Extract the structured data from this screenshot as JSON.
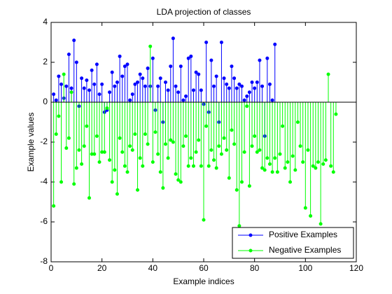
{
  "chart_data": {
    "type": "stem",
    "title": "LDA projection of classes",
    "xlabel": "Example indices",
    "ylabel": "Example values",
    "xlim": [
      0,
      120
    ],
    "xticks": [
      0,
      20,
      40,
      60,
      80,
      100,
      120
    ],
    "ylim": [
      -8,
      4
    ],
    "yticks": [
      -8,
      -6,
      -4,
      -2,
      0,
      2,
      4
    ],
    "grid": false,
    "legend": "lower right",
    "series": [
      {
        "name": "Positive Examples",
        "color": "#0000ff",
        "x": [
          1,
          2,
          3,
          4,
          5,
          6,
          7,
          8,
          9,
          10,
          11,
          12,
          13,
          14,
          15,
          16,
          17,
          18,
          19,
          20,
          21,
          22,
          23,
          24,
          25,
          26,
          27,
          28,
          29,
          30,
          31,
          32,
          33,
          34,
          35,
          36,
          37,
          38,
          39,
          40,
          41,
          42,
          43,
          44,
          45,
          46,
          47,
          48,
          49,
          50,
          51,
          52,
          53,
          54,
          55,
          56,
          57,
          58,
          59,
          60,
          61,
          62,
          63,
          64,
          65,
          66,
          67,
          68,
          69,
          70,
          71,
          72,
          73,
          74,
          75,
          76,
          77,
          78,
          79,
          80,
          81,
          82,
          83,
          84,
          85,
          86,
          87,
          88
        ],
        "values": [
          0.4,
          0.1,
          1.3,
          0.9,
          0.2,
          0.8,
          2.4,
          0.7,
          3.1,
          2.0,
          -0.2,
          1.2,
          0.7,
          1.1,
          0.6,
          1.6,
          0.9,
          1.9,
          0.4,
          0.9,
          -0.5,
          -0.4,
          0.5,
          1.5,
          0.8,
          1.0,
          2.3,
          1.3,
          1.8,
          1.9,
          0.1,
          0.4,
          0.9,
          1.0,
          1.4,
          1.2,
          0.8,
          1.7,
          0.8,
          2.2,
          -0.4,
          0.8,
          1.2,
          -1.0,
          1.0,
          0.6,
          1.8,
          3.2,
          0.8,
          0.5,
          1.8,
          0.1,
          0.3,
          2.2,
          2.3,
          0.6,
          1.5,
          1.4,
          0.6,
          -0.1,
          3.0,
          -0.5,
          2.1,
          0.8,
          1.3,
          -1.0,
          3.0,
          1.2,
          0.9,
          0.7,
          1.8,
          1.2,
          0.7,
          0.9,
          0.8,
          0.1,
          0.3,
          0.5,
          1.0,
          0.7,
          1.0,
          2.1,
          0.8,
          -1.7,
          2.2,
          0.9,
          0.1,
          2.9
        ]
      },
      {
        "name": "Negative Examples",
        "color": "#00ff00",
        "x": [
          1,
          2,
          3,
          4,
          5,
          6,
          7,
          8,
          9,
          10,
          11,
          12,
          13,
          14,
          15,
          16,
          17,
          18,
          19,
          20,
          21,
          22,
          23,
          24,
          25,
          26,
          27,
          28,
          29,
          30,
          31,
          32,
          33,
          34,
          35,
          36,
          37,
          38,
          39,
          40,
          41,
          42,
          43,
          44,
          45,
          46,
          47,
          48,
          49,
          50,
          51,
          52,
          53,
          54,
          55,
          56,
          57,
          58,
          59,
          60,
          61,
          62,
          63,
          64,
          65,
          66,
          67,
          68,
          69,
          70,
          71,
          72,
          73,
          74,
          75,
          76,
          77,
          78,
          79,
          80,
          81,
          82,
          83,
          84,
          85,
          86,
          87,
          88,
          89,
          90,
          91,
          92,
          93,
          94,
          95,
          96,
          97,
          98,
          99,
          100,
          101,
          102,
          103,
          104,
          105,
          106,
          107,
          108,
          109,
          110,
          111,
          112
        ],
        "values": [
          -5.2,
          -1.6,
          -0.7,
          -4.0,
          1.4,
          -2.3,
          -1.8,
          0.5,
          -4.1,
          -3.3,
          -2.4,
          -3.1,
          -2.2,
          -1.2,
          -4.8,
          -2.6,
          -2.6,
          -1.7,
          -3.0,
          -2.5,
          -2.5,
          -0.3,
          -2.9,
          -4.0,
          -3.4,
          -4.6,
          -1.8,
          -2.5,
          -3.2,
          -3.5,
          -2.2,
          -2.4,
          -1.6,
          -4.4,
          -2.8,
          -3.2,
          -1.6,
          -2.1,
          2.8,
          -3.0,
          -1.5,
          -2.6,
          -3.5,
          -4.3,
          -2.1,
          -2.8,
          -1.9,
          -2.0,
          -3.6,
          -3.9,
          -4.0,
          -2.2,
          -1.7,
          -3.2,
          -2.8,
          -3.2,
          -2.5,
          -1.9,
          -3.2,
          -5.9,
          -1.2,
          -3.2,
          -2.4,
          -2.9,
          -3.3,
          -2.2,
          -2.6,
          -1.8,
          -2.4,
          -3.8,
          -1.4,
          -2.1,
          -4.4,
          -6.2,
          -4.0,
          -2.5,
          -0.2,
          -4.2,
          -2.2,
          -1.7,
          -2.5,
          -2.4,
          -3.3,
          -3.4,
          -2.8,
          -3.1,
          -3.5,
          -2.8,
          -3.5,
          -2.6,
          -1.2,
          -3.3,
          -3.0,
          -4.0,
          -2.7,
          -3.4,
          -1.0,
          -2.2,
          -3.0,
          -5.3,
          -2.4,
          -5.7,
          -3.2,
          -3.3,
          -3.0,
          -6.1,
          -3.1,
          -2.9,
          1.4,
          -3.2,
          -3.5,
          -0.6
        ]
      }
    ]
  }
}
